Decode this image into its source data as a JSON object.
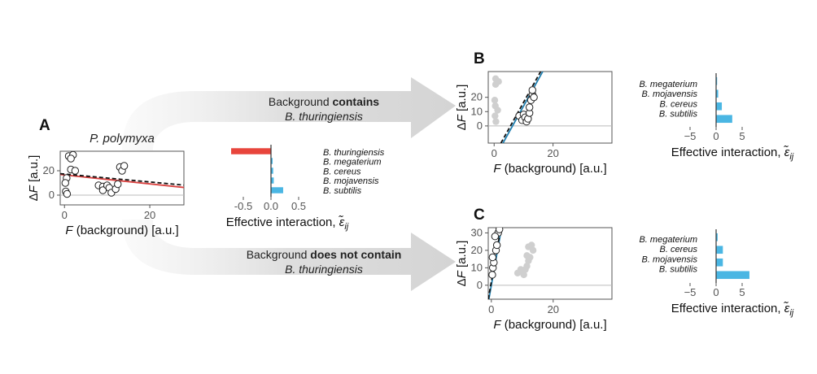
{
  "colors": {
    "point_fill": "#ffffff",
    "point_stroke": "#222222",
    "grey_point": "#cfcfcf",
    "fit_red": "#d9413f",
    "fit_blue": "#1f7fb0",
    "bar_red": "#e8453c",
    "bar_blue": "#4ab6e3",
    "arrow": "#dcdcdc",
    "zero_line": "#bbbbbb"
  },
  "arrows": {
    "top": {
      "line1_normal": "Background ",
      "line1_bold": "contains",
      "line2": "B. thuringiensis"
    },
    "bottom": {
      "line1_normal": "Background ",
      "line1_bold": "does not contain",
      "line2": "B. thuringiensis"
    }
  },
  "chart_data": [
    {
      "id": "A",
      "type": "scatter",
      "panel_label": "A",
      "title": "P. polymyxa",
      "xlabel_italic": "F",
      "xlabel_rest": " (background) [a.u.]",
      "ylabel_delta": "Δ",
      "ylabel_italic": "F",
      "ylabel_rest": " [a.u.]",
      "xlim": [
        -1,
        28
      ],
      "ylim": [
        -8,
        36
      ],
      "xticks": [
        0,
        20
      ],
      "yticks": [
        0,
        20
      ],
      "xtick_labels": [
        "0",
        "20"
      ],
      "ytick_labels": [
        "0",
        "20"
      ],
      "points": [
        [
          1,
          32
        ],
        [
          2,
          33
        ],
        [
          1.5,
          30
        ],
        [
          0.5,
          14
        ],
        [
          0.2,
          10
        ],
        [
          0.3,
          3
        ],
        [
          0.6,
          1
        ],
        [
          1.5,
          21
        ],
        [
          2.5,
          20
        ],
        [
          8,
          8
        ],
        [
          9,
          7
        ],
        [
          9,
          4
        ],
        [
          10,
          8
        ],
        [
          10.5,
          6
        ],
        [
          11,
          2
        ],
        [
          12,
          5
        ],
        [
          12.5,
          9
        ],
        [
          13,
          23
        ],
        [
          13.5,
          20
        ],
        [
          14,
          24
        ]
      ],
      "fit_lines": [
        {
          "style": "solid",
          "color": "#d9413f",
          "x": [
            -1,
            28
          ],
          "y": [
            16.9,
            6.3
          ]
        },
        {
          "style": "dashed",
          "color": "#111111",
          "x": [
            -1,
            28
          ],
          "y": [
            17.6,
            8.2
          ]
        }
      ]
    },
    {
      "id": "A-bars",
      "type": "bar",
      "orientation": "horizontal",
      "categories": [
        "B. thuringiensis",
        "B. megaterium",
        "B. cereus",
        "B. mojavensis",
        "B. subtilis"
      ],
      "values": [
        -0.72,
        0.03,
        0.04,
        0.05,
        0.22
      ],
      "bar_colors": [
        "#e8453c",
        "#4ab6e3",
        "#4ab6e3",
        "#4ab6e3",
        "#4ab6e3"
      ],
      "xlim": [
        -0.75,
        0.75
      ],
      "xticks": [
        -0.5,
        0,
        0.5
      ],
      "xtick_labels": [
        "-0.5",
        "0.0",
        "0.5"
      ],
      "xlabel": "Effective interaction, ",
      "xlabel_symbol": "ε̃",
      "xlabel_sub": "ij"
    },
    {
      "id": "B",
      "type": "scatter",
      "panel_label": "B",
      "xlabel_italic": "F",
      "xlabel_rest": " (background) [a.u.]",
      "ylabel_delta": "Δ",
      "ylabel_italic": "F",
      "ylabel_rest": " [a.u.]",
      "xlim": [
        -2,
        40
      ],
      "ylim": [
        -12,
        38
      ],
      "xticks": [
        0,
        20
      ],
      "yticks": [
        0,
        10,
        20
      ],
      "xtick_labels": [
        "0",
        "20"
      ],
      "ytick_labels": [
        "0",
        "10",
        "20"
      ],
      "grey_points": [
        [
          0.5,
          33
        ],
        [
          1.5,
          31
        ],
        [
          0.5,
          29
        ],
        [
          0.2,
          18
        ],
        [
          0.4,
          14
        ],
        [
          1.2,
          11
        ],
        [
          0.3,
          7
        ],
        [
          0.6,
          3
        ]
      ],
      "points": [
        [
          8.5,
          7
        ],
        [
          9.5,
          4
        ],
        [
          10,
          8
        ],
        [
          10.5,
          6
        ],
        [
          11,
          3
        ],
        [
          11.5,
          5
        ],
        [
          12,
          9
        ],
        [
          12,
          13
        ],
        [
          12.5,
          18
        ],
        [
          13,
          22
        ],
        [
          13,
          25
        ],
        [
          13.5,
          20
        ]
      ],
      "fit_lines": [
        {
          "style": "solid",
          "color": "#1f7fb0",
          "x": [
            3,
            16.5
          ],
          "y": [
            -12,
            38
          ]
        },
        {
          "style": "dashed",
          "color": "#111111",
          "x": [
            2.3,
            15.8
          ],
          "y": [
            -12,
            38
          ]
        }
      ]
    },
    {
      "id": "B-bars",
      "type": "bar",
      "orientation": "horizontal",
      "categories": [
        "B. megaterium",
        "B. mojavensis",
        "B. cereus",
        "B. subtilis"
      ],
      "values": [
        0.2,
        0.4,
        1.1,
        3.1
      ],
      "bar_colors": [
        "#4ab6e3",
        "#4ab6e3",
        "#4ab6e3",
        "#4ab6e3"
      ],
      "xlim": [
        -7.5,
        7.5
      ],
      "xticks": [
        -5,
        0,
        5
      ],
      "xtick_labels": [
        "−5",
        "0",
        "5"
      ],
      "xlabel": "Effective interaction, ",
      "xlabel_symbol": "ε̃",
      "xlabel_sub": "ij"
    },
    {
      "id": "C",
      "type": "scatter",
      "panel_label": "C",
      "xlabel_italic": "F",
      "xlabel_rest": " (background) [a.u.]",
      "ylabel_delta": "Δ",
      "ylabel_italic": "F",
      "ylabel_rest": " [a.u.]",
      "xlim": [
        -1,
        39
      ],
      "ylim": [
        -8,
        33
      ],
      "xticks": [
        0,
        20
      ],
      "yticks": [
        0,
        10,
        20,
        30
      ],
      "xtick_labels": [
        "0",
        "20"
      ],
      "ytick_labels": [
        "0",
        "10",
        "20",
        "30"
      ],
      "grey_points": [
        [
          8.5,
          7
        ],
        [
          9.5,
          9
        ],
        [
          10,
          8
        ],
        [
          11,
          9
        ],
        [
          11.5,
          11
        ],
        [
          12,
          14
        ],
        [
          12.5,
          16
        ],
        [
          12,
          22
        ],
        [
          13,
          23
        ],
        [
          13.5,
          20
        ],
        [
          11.5,
          17
        ],
        [
          10.5,
          6
        ]
      ],
      "points": [
        [
          0.3,
          6
        ],
        [
          0.5,
          10
        ],
        [
          0.8,
          13
        ],
        [
          0.4,
          16
        ],
        [
          1.5,
          20
        ],
        [
          1.8,
          23
        ],
        [
          2.2,
          30
        ],
        [
          2.6,
          32
        ],
        [
          1.2,
          28
        ]
      ],
      "fit_lines": [
        {
          "style": "solid",
          "color": "#1f7fb0",
          "x": [
            -0.8,
            3.3
          ],
          "y": [
            -8,
            33
          ]
        },
        {
          "style": "dashed",
          "color": "#111111",
          "x": [
            -1,
            3.1
          ],
          "y": [
            -8,
            33
          ]
        }
      ]
    },
    {
      "id": "C-bars",
      "type": "bar",
      "orientation": "horizontal",
      "categories": [
        "B. megaterium",
        "B. cereus",
        "B. mojavensis",
        "B. subtilis"
      ],
      "values": [
        0.3,
        1.3,
        1.3,
        6.4
      ],
      "bar_colors": [
        "#4ab6e3",
        "#4ab6e3",
        "#4ab6e3",
        "#4ab6e3"
      ],
      "xlim": [
        -7.5,
        7.5
      ],
      "xticks": [
        -5,
        0,
        5
      ],
      "xtick_labels": [
        "−5",
        "0",
        "5"
      ],
      "xlabel": "Effective interaction, ",
      "xlabel_symbol": "ε̃",
      "xlabel_sub": "ij"
    }
  ]
}
